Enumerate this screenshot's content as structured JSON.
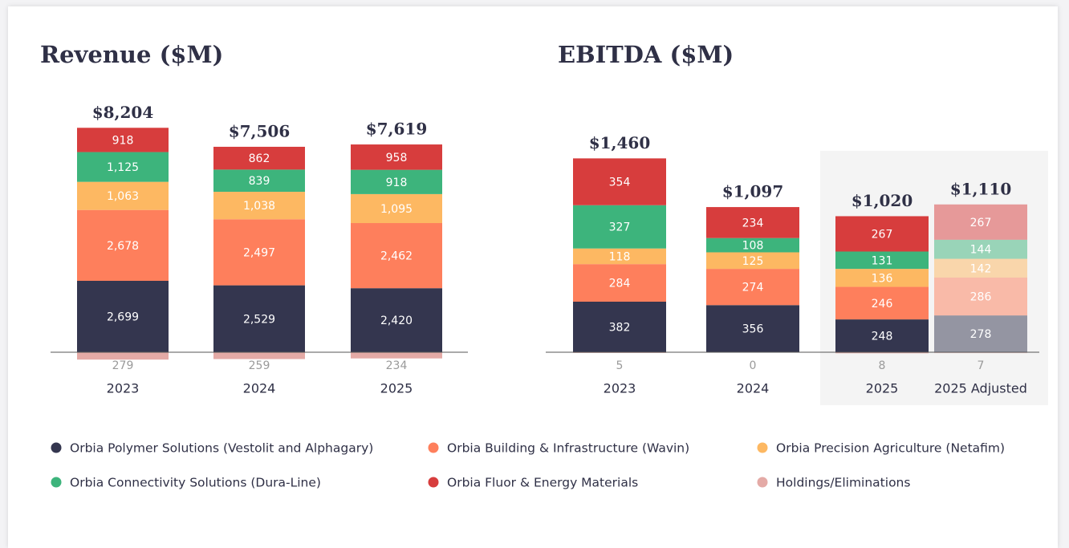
{
  "chart_data": [
    {
      "type": "bar",
      "stacked": true,
      "title": "Revenue ($M)",
      "categories": [
        "2023",
        "2024",
        "2025"
      ],
      "series": [
        {
          "name": "Orbia Polymer Solutions (Vestolit and Alphagary)",
          "color": "#34364f",
          "values": [
            2699,
            2529,
            2420
          ],
          "value_labels": [
            "2,699",
            "2,529",
            "2,420"
          ]
        },
        {
          "name": "Orbia Building & Infrastructure (Wavin)",
          "color": "#fe7f5c",
          "values": [
            2678,
            2497,
            2462
          ],
          "value_labels": [
            "2,678",
            "2,497",
            "2,462"
          ]
        },
        {
          "name": "Orbia Precision Agriculture (Netafim)",
          "color": "#fdb862",
          "values": [
            1063,
            1038,
            1095
          ],
          "value_labels": [
            "1,063",
            "1,038",
            "1,095"
          ]
        },
        {
          "name": "Orbia Connectivity Solutions (Dura-Line)",
          "color": "#3db47c",
          "values": [
            1125,
            839,
            918
          ],
          "value_labels": [
            "1,125",
            "839",
            "918"
          ]
        },
        {
          "name": "Orbia Fluor & Energy Materials",
          "color": "#d73d3d",
          "values": [
            918,
            862,
            958
          ]
        },
        {
          "name": "Holdings/Eliminations",
          "color": "#e4aaa6",
          "values": [
            -279,
            -259,
            -234
          ],
          "value_labels": [
            "279",
            "259",
            "234"
          ]
        }
      ],
      "totals": {
        "values": [
          8204,
          7506,
          7619
        ],
        "value_labels": [
          "$8,204",
          "$7,506",
          "$7,619"
        ]
      }
    },
    {
      "type": "bar",
      "stacked": true,
      "title": "EBITDA ($M)",
      "categories": [
        "2023",
        "2024",
        "2025",
        "2025 Adjusted"
      ],
      "shaded": [
        false,
        false,
        true,
        true
      ],
      "faded": [
        false,
        false,
        false,
        true
      ],
      "series": [
        {
          "name": "Orbia Polymer Solutions (Vestolit and Alphagary)",
          "color": "#34364f",
          "values": [
            382,
            356,
            248,
            278
          ]
        },
        {
          "name": "Orbia Building & Infrastructure (Wavin)",
          "color": "#fe7f5c",
          "values": [
            284,
            274,
            246,
            286
          ]
        },
        {
          "name": "Orbia Precision Agriculture (Netafim)",
          "color": "#fdb862",
          "values": [
            118,
            125,
            136,
            142
          ]
        },
        {
          "name": "Orbia Connectivity Solutions (Dura-Line)",
          "color": "#3db47c",
          "values": [
            327,
            108,
            131,
            144
          ]
        },
        {
          "name": "Orbia Fluor & Energy Materials",
          "color": "#d73d3d",
          "values": [
            354,
            234,
            267,
            267
          ]
        },
        {
          "name": "Holdings/Eliminations",
          "color": "#e4aaa6",
          "values": [
            -5,
            0,
            -8,
            -7
          ],
          "value_labels": [
            "5",
            "0",
            "8",
            "7"
          ]
        }
      ],
      "totals": {
        "values": [
          1460,
          1097,
          1020,
          1110
        ],
        "value_labels": [
          "$1,460",
          "$1,097",
          "$1,020",
          "$1,110"
        ]
      }
    }
  ]
}
